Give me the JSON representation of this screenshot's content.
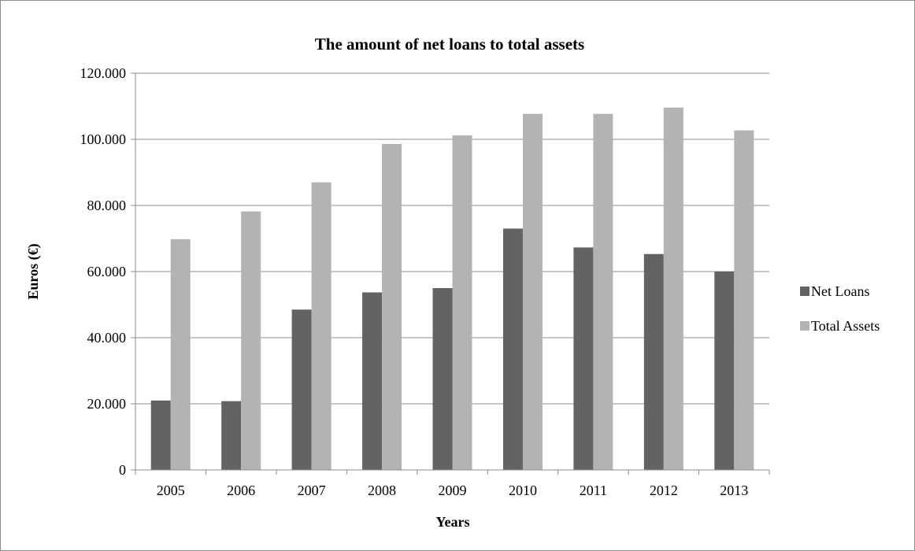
{
  "chart_data": {
    "type": "bar",
    "title": "The amount of net loans to total assets",
    "xlabel": "Years",
    "ylabel": "Euros (€)",
    "categories": [
      "2005",
      "2006",
      "2007",
      "2008",
      "2009",
      "2010",
      "2011",
      "2012",
      "2013"
    ],
    "ylim": [
      0,
      120000
    ],
    "yticks": [
      0,
      20000,
      40000,
      60000,
      80000,
      100000,
      120000
    ],
    "ytick_labels": [
      "0",
      "20.000",
      "40.000",
      "60.000",
      "80.000",
      "100.000",
      "120.000"
    ],
    "grid": true,
    "legend_position": "right",
    "series": [
      {
        "name": "Net Loans",
        "color": "#636363",
        "values": [
          21000,
          20800,
          48500,
          53700,
          55000,
          73000,
          67300,
          65300,
          60000
        ]
      },
      {
        "name": "Total Assets",
        "color": "#b3b3b3",
        "values": [
          69800,
          78200,
          87000,
          98600,
          101200,
          107700,
          107700,
          109600,
          102700
        ]
      }
    ]
  }
}
